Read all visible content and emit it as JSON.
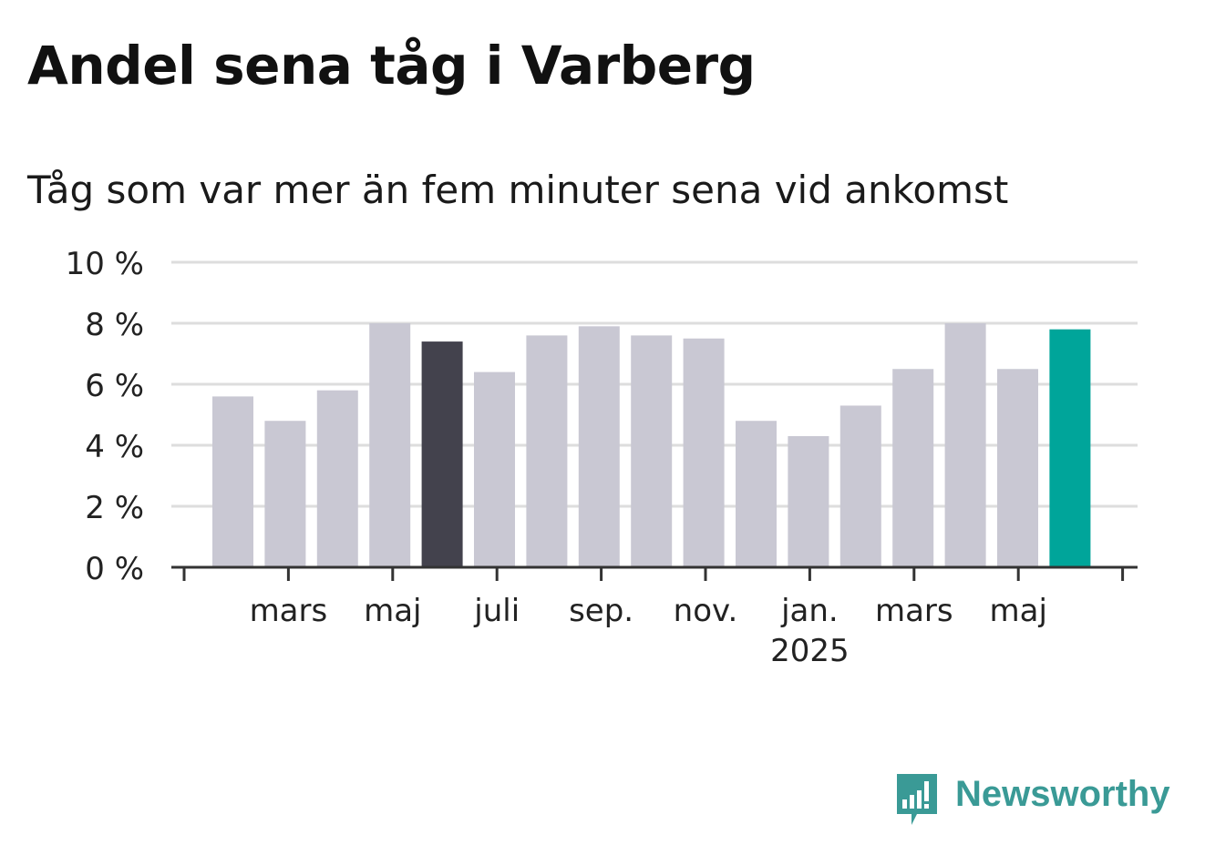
{
  "title": "Andel sena tåg i Varberg",
  "subtitle": "Tåg som var mer än fem minuter sena vid ankomst",
  "brand": {
    "name": "Newsworthy",
    "color": "#3a9a96"
  },
  "colors": {
    "default_bar": "#c9c8d3",
    "highlight_dark": "#43424d",
    "highlight_latest": "#00a59a",
    "grid": "#dddddd",
    "axis": "#333333"
  },
  "chart_data": {
    "type": "bar",
    "ylim": [
      0,
      10
    ],
    "yticks": [
      "0 %",
      "2 %",
      "4 %",
      "6 %",
      "8 %",
      "10 %"
    ],
    "grid": true,
    "x_tick_labels": [
      {
        "label": "mars",
        "sub": ""
      },
      {
        "label": "maj",
        "sub": ""
      },
      {
        "label": "juli",
        "sub": ""
      },
      {
        "label": "sep.",
        "sub": ""
      },
      {
        "label": "nov.",
        "sub": ""
      },
      {
        "label": "jan.",
        "sub": "2025"
      },
      {
        "label": "mars",
        "sub": ""
      },
      {
        "label": "maj",
        "sub": ""
      }
    ],
    "values": [
      5.6,
      4.8,
      5.8,
      8.0,
      7.4,
      6.4,
      7.6,
      7.9,
      7.6,
      7.5,
      4.8,
      4.3,
      5.3,
      6.5,
      8.0,
      6.5,
      7.8
    ],
    "highlights": {
      "4": "highlight_dark",
      "16": "highlight_latest"
    }
  }
}
